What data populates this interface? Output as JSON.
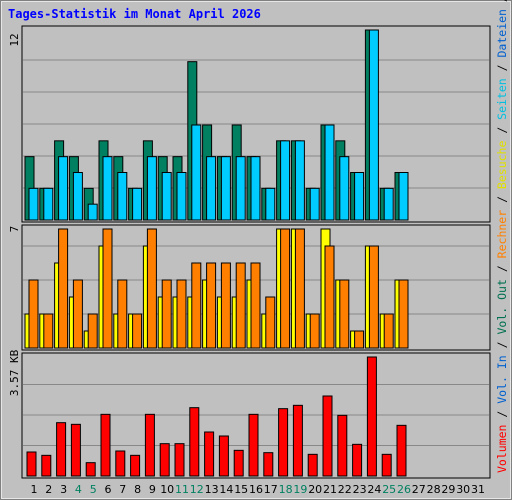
{
  "chart_data": {
    "type": "bar",
    "title": "Tages-Statistik im Monat April 2026",
    "days": [
      "1",
      "2",
      "3",
      "4",
      "5",
      "6",
      "7",
      "8",
      "9",
      "10",
      "11",
      "12",
      "13",
      "14",
      "15",
      "16",
      "17",
      "18",
      "19",
      "20",
      "21",
      "22",
      "23",
      "24",
      "25",
      "26",
      "27",
      "28",
      "29",
      "30",
      "31"
    ],
    "weekend_days": [
      "4",
      "5",
      "11",
      "12",
      "18",
      "19",
      "25",
      "26"
    ],
    "right_axis_labels": [
      {
        "text": "Anfragen",
        "color": "#007050"
      },
      {
        "text": "Dateien",
        "color": "#0060d0"
      },
      {
        "text": "Seiten",
        "color": "#00c0e0"
      },
      {
        "text": "Besuche",
        "color": "#e0e000"
      },
      {
        "text": "Rechner",
        "color": "#ff8000"
      },
      {
        "text": "Vol. Out",
        "color": "#007050"
      },
      {
        "text": "Vol. In",
        "color": "#0060d0"
      },
      {
        "text": "Volumen",
        "color": "#ff0000"
      }
    ],
    "panels": [
      {
        "id": "requests",
        "max_label": "12",
        "ymax": 12,
        "series": [
          {
            "color": "#008060",
            "values": [
              4,
              2,
              5,
              4,
              2,
              5,
              4,
              2,
              5,
              4,
              4,
              10,
              6,
              4,
              6,
              4,
              2,
              5,
              5,
              2,
              6,
              5,
              3,
              12,
              2,
              3,
              0,
              0,
              0,
              0,
              0
            ]
          },
          {
            "color": "#00ccff",
            "values": [
              2,
              2,
              4,
              3,
              1,
              4,
              3,
              2,
              4,
              3,
              3,
              6,
              4,
              4,
              4,
              4,
              2,
              5,
              5,
              2,
              6,
              4,
              3,
              12,
              2,
              3,
              0,
              0,
              0,
              0,
              0
            ]
          }
        ]
      },
      {
        "id": "visits",
        "max_label": "7",
        "ymax": 7,
        "series": [
          {
            "color": "#ffff00",
            "values": [
              2,
              2,
              5,
              3,
              1,
              6,
              2,
              2,
              6,
              3,
              3,
              3,
              4,
              3,
              3,
              4,
              2,
              7,
              7,
              2,
              7,
              4,
              1,
              6,
              2,
              4,
              0,
              0,
              0,
              0,
              0
            ]
          },
          {
            "color": "#ff8000",
            "values": [
              4,
              2,
              7,
              4,
              2,
              7,
              4,
              2,
              7,
              4,
              4,
              5,
              5,
              5,
              5,
              5,
              3,
              7,
              7,
              2,
              6,
              4,
              1,
              6,
              2,
              4,
              0,
              0,
              0,
              0,
              0
            ]
          }
        ]
      },
      {
        "id": "volume",
        "max_label": "3.57 KB",
        "ymax": 3.57,
        "series": [
          {
            "color": "#ff0000",
            "values": [
              0.72,
              0.62,
              1.6,
              1.55,
              0.4,
              1.85,
              0.75,
              0.62,
              1.85,
              0.97,
              0.97,
              2.05,
              1.32,
              1.2,
              0.77,
              1.85,
              0.7,
              2.02,
              2.12,
              0.65,
              2.4,
              1.82,
              0.95,
              3.57,
              0.65,
              1.52,
              0,
              0,
              0,
              0,
              0
            ]
          }
        ]
      }
    ]
  }
}
